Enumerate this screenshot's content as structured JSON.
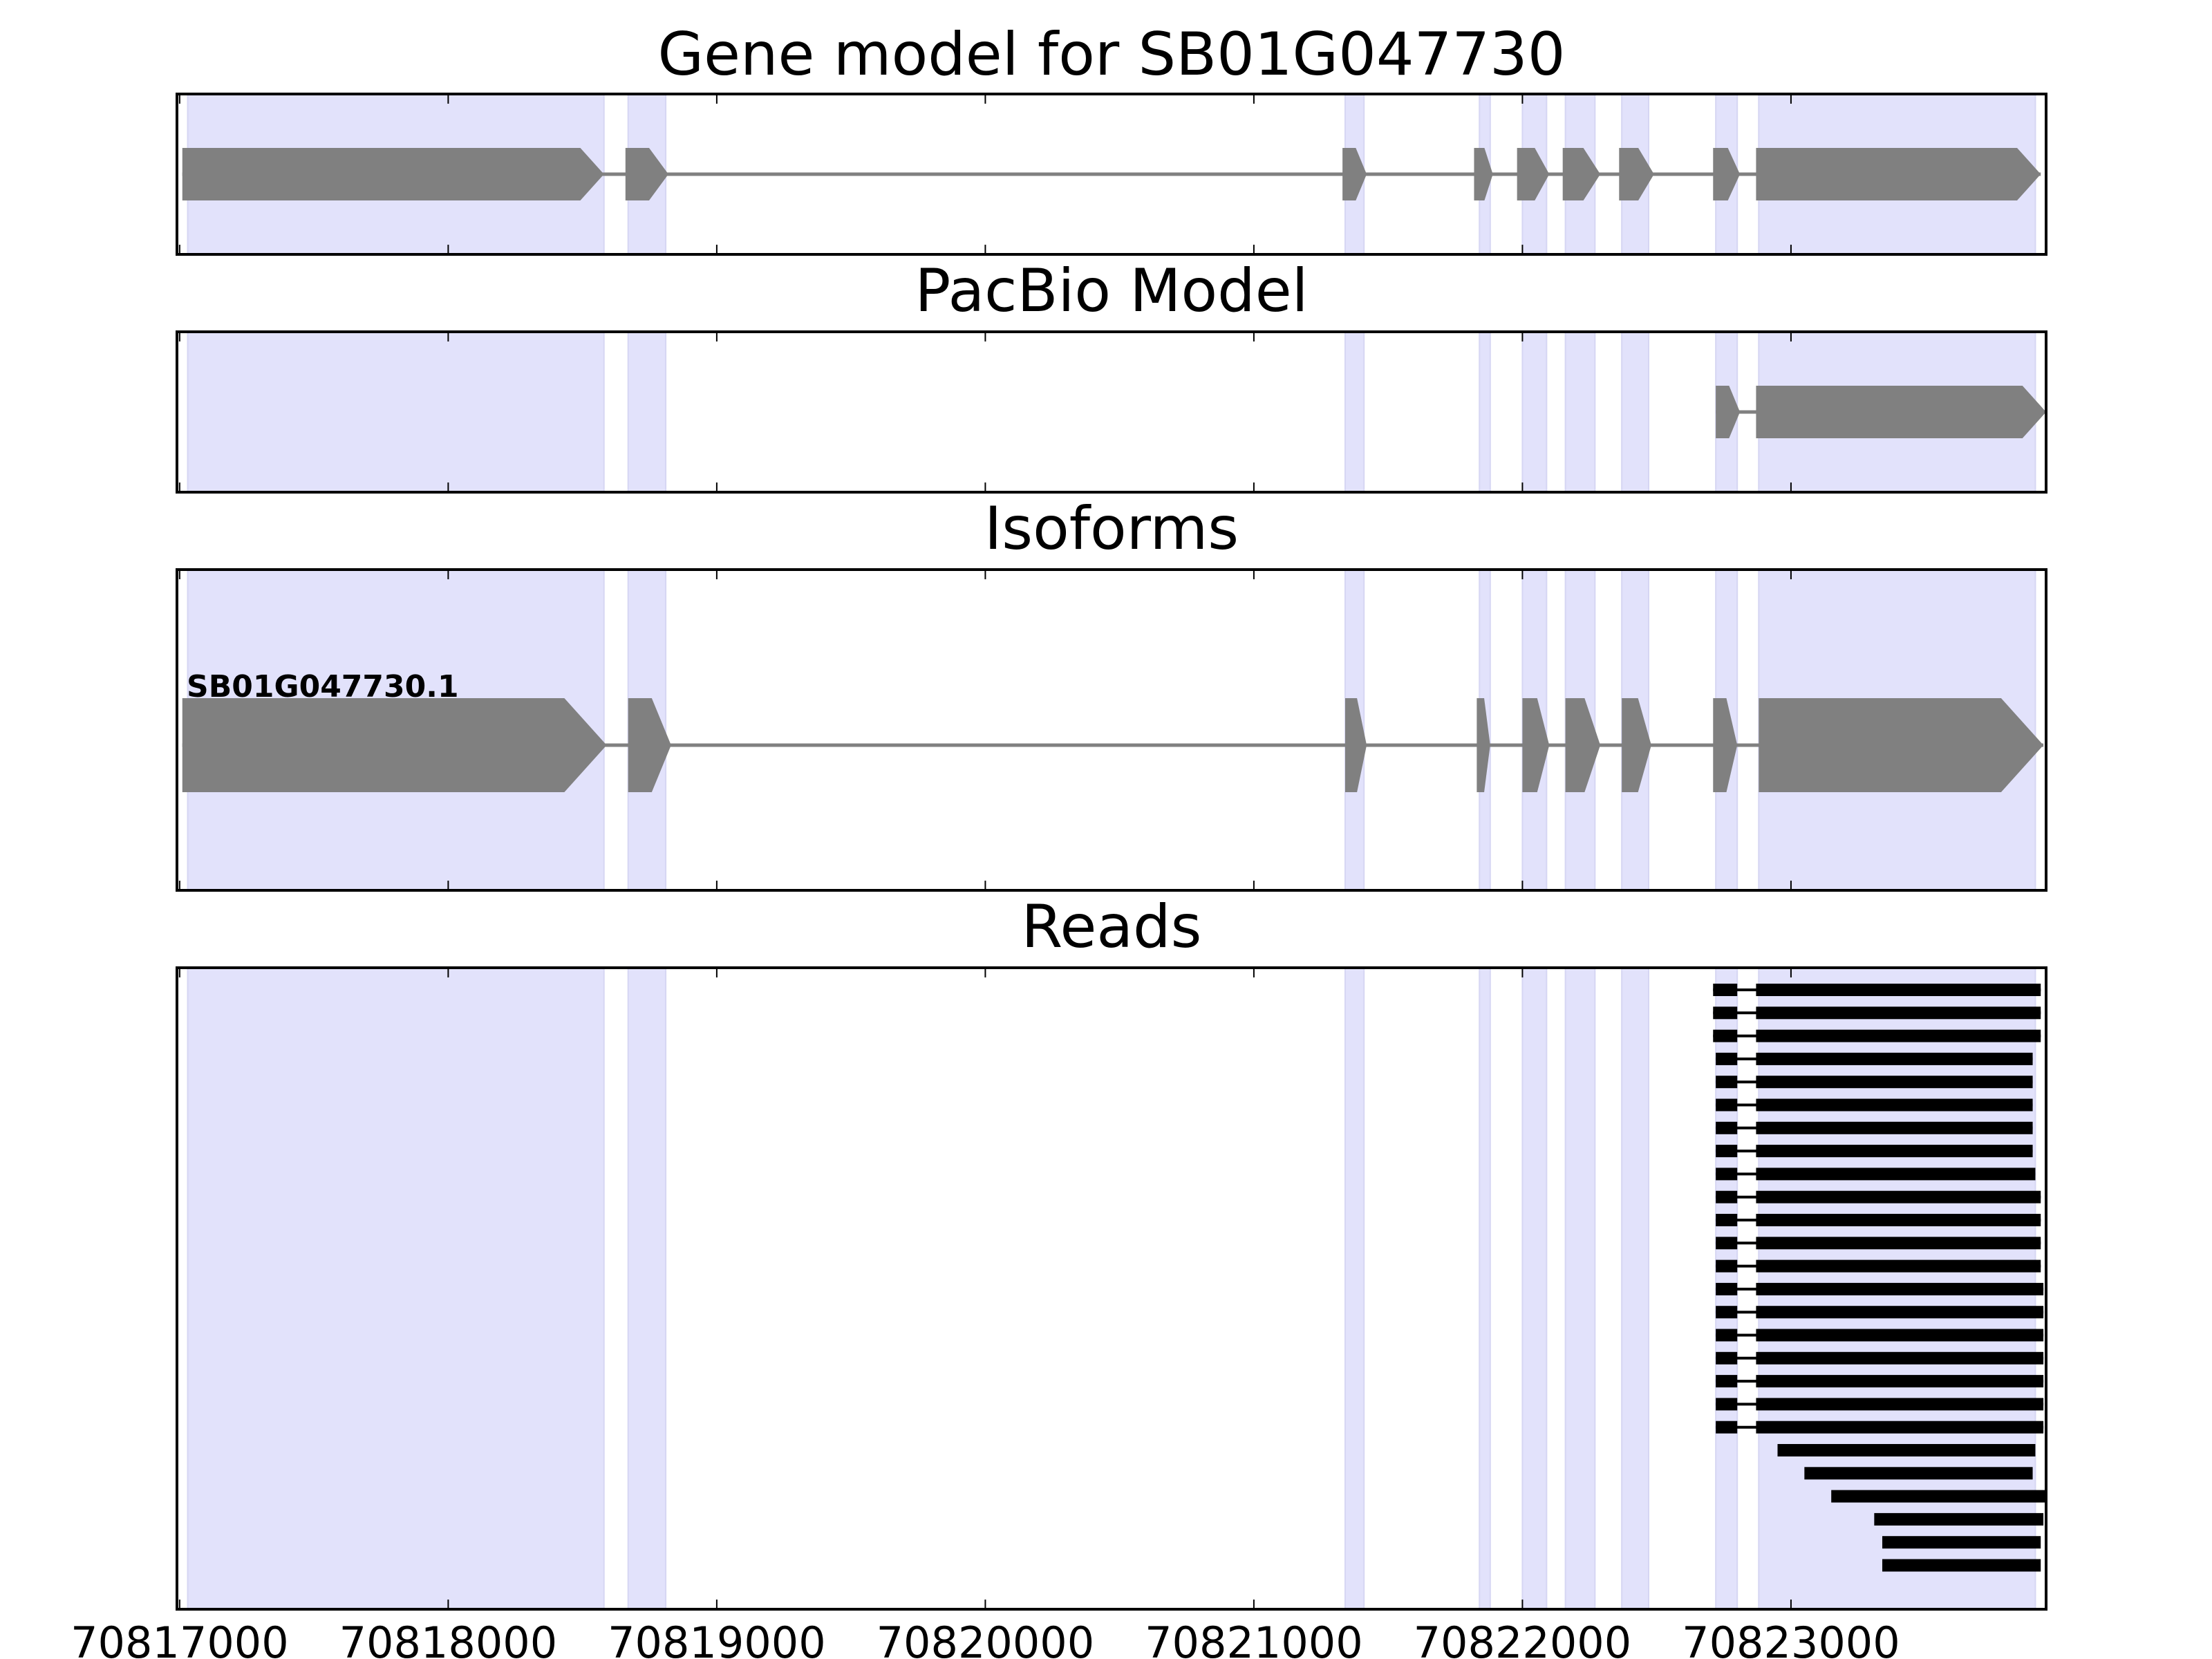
{
  "chart_data": {
    "type": "gene-structure",
    "xlim": [
      70816990,
      70823950
    ],
    "x_ticks": [
      70817000,
      70818000,
      70819000,
      70820000,
      70821000,
      70822000,
      70823000
    ],
    "highlight_regions": [
      [
        70817030,
        70818580
      ],
      [
        70818670,
        70818810
      ],
      [
        70821340,
        70821410
      ],
      [
        70821840,
        70821880
      ],
      [
        70822000,
        70822090
      ],
      [
        70822160,
        70822270
      ],
      [
        70822370,
        70822470
      ],
      [
        70822720,
        70822800
      ],
      [
        70822880,
        70823910
      ]
    ],
    "panels": [
      {
        "id": "gene-model",
        "title": "Gene model for SB01G047730",
        "models": [
          {
            "exons": [
              [
                70817010,
                70818580
              ],
              [
                70818660,
                70818820
              ],
              [
                70821330,
                70821420
              ],
              [
                70821820,
                70821890
              ],
              [
                70821980,
                70822100
              ],
              [
                70822150,
                70822290
              ],
              [
                70822360,
                70822490
              ],
              [
                70822710,
                70822810
              ],
              [
                70822870,
                70823930
              ]
            ]
          }
        ]
      },
      {
        "id": "pacbio-model",
        "title": "PacBio Model",
        "models": [
          {
            "exons": [
              [
                70822720,
                70822810
              ],
              [
                70822870,
                70823950
              ]
            ]
          }
        ]
      },
      {
        "id": "isoforms",
        "title": "Isoforms",
        "models": [
          {
            "label": "SB01G047730.1",
            "exons": [
              [
                70817010,
                70818590
              ],
              [
                70818670,
                70818830
              ],
              [
                70821340,
                70821420
              ],
              [
                70821830,
                70821880
              ],
              [
                70822000,
                70822100
              ],
              [
                70822160,
                70822290
              ],
              [
                70822370,
                70822480
              ],
              [
                70822710,
                70822800
              ],
              [
                70822880,
                70823940
              ]
            ]
          }
        ]
      },
      {
        "id": "reads",
        "title": "Reads",
        "reads": [
          [
            [
              70822710,
              70822800
            ],
            [
              70822870,
              70823930
            ]
          ],
          [
            [
              70822710,
              70822800
            ],
            [
              70822870,
              70823930
            ]
          ],
          [
            [
              70822710,
              70822800
            ],
            [
              70822870,
              70823930
            ]
          ],
          [
            [
              70822720,
              70822800
            ],
            [
              70822870,
              70823900
            ]
          ],
          [
            [
              70822720,
              70822800
            ],
            [
              70822870,
              70823900
            ]
          ],
          [
            [
              70822720,
              70822800
            ],
            [
              70822870,
              70823900
            ]
          ],
          [
            [
              70822720,
              70822800
            ],
            [
              70822870,
              70823900
            ]
          ],
          [
            [
              70822720,
              70822800
            ],
            [
              70822870,
              70823900
            ]
          ],
          [
            [
              70822720,
              70822800
            ],
            [
              70822870,
              70823910
            ]
          ],
          [
            [
              70822720,
              70822800
            ],
            [
              70822870,
              70823930
            ]
          ],
          [
            [
              70822720,
              70822800
            ],
            [
              70822870,
              70823930
            ]
          ],
          [
            [
              70822720,
              70822800
            ],
            [
              70822870,
              70823930
            ]
          ],
          [
            [
              70822720,
              70822800
            ],
            [
              70822870,
              70823930
            ]
          ],
          [
            [
              70822720,
              70822800
            ],
            [
              70822870,
              70823940
            ]
          ],
          [
            [
              70822720,
              70822800
            ],
            [
              70822870,
              70823940
            ]
          ],
          [
            [
              70822720,
              70822800
            ],
            [
              70822870,
              70823940
            ]
          ],
          [
            [
              70822720,
              70822800
            ],
            [
              70822870,
              70823940
            ]
          ],
          [
            [
              70822720,
              70822800
            ],
            [
              70822870,
              70823940
            ]
          ],
          [
            [
              70822720,
              70822800
            ],
            [
              70822870,
              70823940
            ]
          ],
          [
            [
              70822720,
              70822800
            ],
            [
              70822870,
              70823940
            ]
          ],
          [
            [
              70822950,
              70823910
            ]
          ],
          [
            [
              70823050,
              70823900
            ]
          ],
          [
            [
              70823150,
              70823950
            ]
          ],
          [
            [
              70823310,
              70823940
            ]
          ],
          [
            [
              70823340,
              70823930
            ]
          ],
          [
            [
              70823340,
              70823930
            ]
          ]
        ]
      }
    ]
  }
}
